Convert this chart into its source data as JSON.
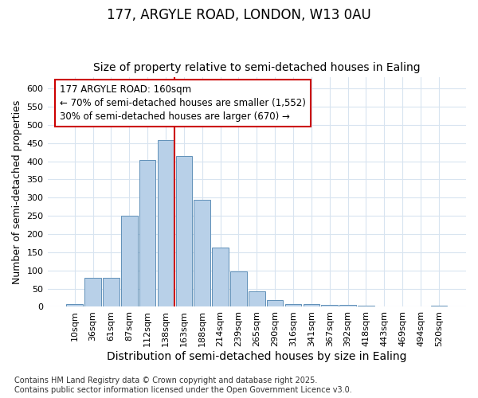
{
  "title": "177, ARGYLE ROAD, LONDON, W13 0AU",
  "subtitle": "Size of property relative to semi-detached houses in Ealing",
  "xlabel": "Distribution of semi-detached houses by size in Ealing",
  "ylabel": "Number of semi-detached properties",
  "categories": [
    "10sqm",
    "36sqm",
    "61sqm",
    "87sqm",
    "112sqm",
    "138sqm",
    "163sqm",
    "188sqm",
    "214sqm",
    "239sqm",
    "265sqm",
    "290sqm",
    "316sqm",
    "341sqm",
    "367sqm",
    "392sqm",
    "418sqm",
    "443sqm",
    "469sqm",
    "494sqm",
    "520sqm"
  ],
  "values": [
    8,
    80,
    80,
    250,
    403,
    458,
    415,
    295,
    162,
    97,
    42,
    18,
    7,
    7,
    5,
    5,
    3,
    1,
    1,
    1,
    3
  ],
  "bar_color": "#b8d0e8",
  "bar_edge_color": "#6090b8",
  "vline_x": 6,
  "vline_color": "#cc0000",
  "annotation_text": "177 ARGYLE ROAD: 160sqm\n← 70% of semi-detached houses are smaller (1,552)\n30% of semi-detached houses are larger (670) →",
  "annotation_box_color": "#cc0000",
  "ylim": [
    0,
    630
  ],
  "yticks": [
    0,
    50,
    100,
    150,
    200,
    250,
    300,
    350,
    400,
    450,
    500,
    550,
    600
  ],
  "background_color": "#ffffff",
  "grid_color": "#d8e4f0",
  "footer": "Contains HM Land Registry data © Crown copyright and database right 2025.\nContains public sector information licensed under the Open Government Licence v3.0.",
  "title_fontsize": 12,
  "subtitle_fontsize": 10,
  "xlabel_fontsize": 10,
  "ylabel_fontsize": 9,
  "tick_fontsize": 8,
  "annotation_fontsize": 8.5,
  "footer_fontsize": 7
}
